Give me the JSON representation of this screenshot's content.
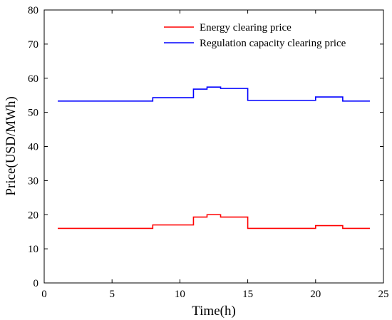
{
  "chart_data": {
    "type": "line",
    "step": true,
    "xlabel": "Time(h)",
    "ylabel": "Price(USD/MWh)",
    "xlim": [
      0,
      25
    ],
    "ylim": [
      0,
      80
    ],
    "xticks": [
      0,
      5,
      10,
      15,
      20,
      25
    ],
    "yticks": [
      0,
      10,
      20,
      30,
      40,
      50,
      60,
      70,
      80
    ],
    "grid": false,
    "legend_position": "top-right",
    "series": [
      {
        "name": "Energy clearing price",
        "color": "#ff0000",
        "x": [
          1,
          8,
          11,
          12,
          13,
          15,
          20,
          22,
          24
        ],
        "y": [
          16.0,
          17.0,
          19.3,
          20.0,
          19.3,
          16.0,
          16.8,
          16.0,
          16.0
        ]
      },
      {
        "name": "Regulation capacity clearing price",
        "color": "#0000ff",
        "x": [
          1,
          8,
          11,
          12,
          13,
          15,
          20,
          22,
          24
        ],
        "y": [
          53.3,
          54.3,
          56.8,
          57.4,
          57.0,
          53.5,
          54.5,
          53.3,
          53.3
        ]
      }
    ]
  }
}
